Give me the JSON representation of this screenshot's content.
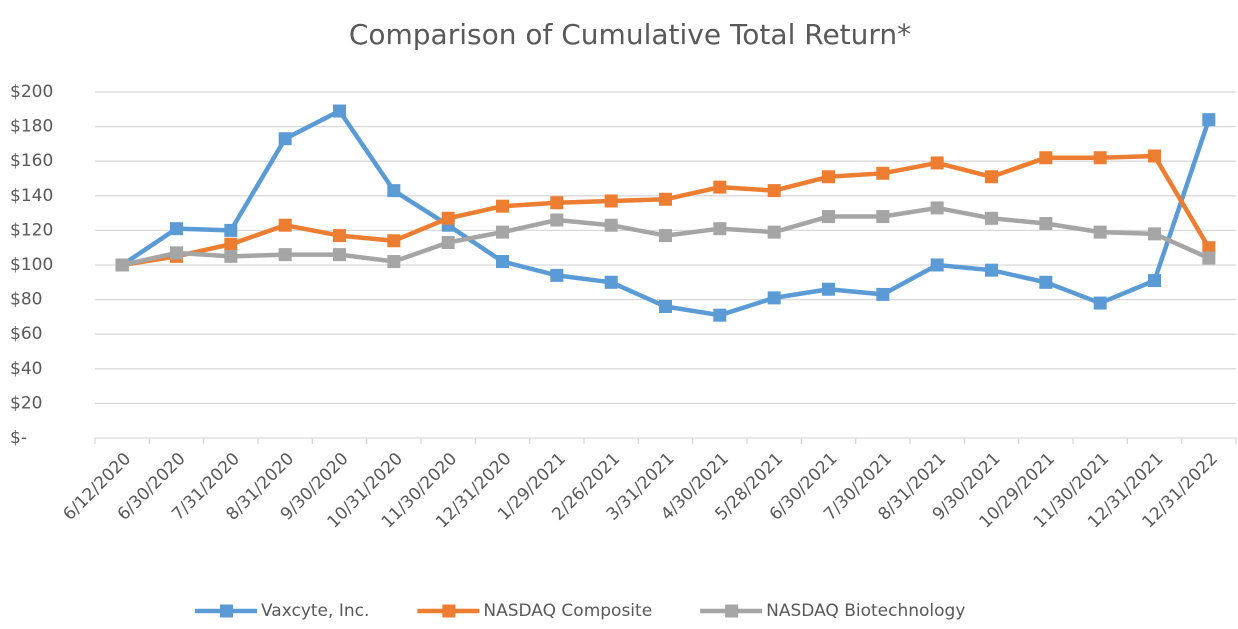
{
  "chart_data": {
    "type": "line",
    "title": "Comparison of Cumulative Total Return*",
    "categories": [
      "6/12/2020",
      "6/30/2020",
      "7/31/2020",
      "8/31/2020",
      "9/30/2020",
      "10/31/2020",
      "11/30/2020",
      "12/31/2020",
      "1/29/2021",
      "2/26/2021",
      "3/31/2021",
      "4/30/2021",
      "5/28/2021",
      "6/30/2021",
      "7/30/2021",
      "8/31/2021",
      "9/30/2021",
      "10/29/2021",
      "11/30/2021",
      "12/31/2021",
      "12/31/2022"
    ],
    "series": [
      {
        "name": "Vaxcyte, Inc.",
        "color": "#5b9bd5",
        "values": [
          100,
          121,
          120,
          173,
          189,
          143,
          123,
          102,
          94,
          90,
          76,
          71,
          81,
          86,
          83,
          100,
          97,
          90,
          78,
          91,
          184
        ]
      },
      {
        "name": "NASDAQ Composite",
        "color": "#ed7d31",
        "values": [
          100,
          105,
          112,
          123,
          117,
          114,
          127,
          134,
          136,
          137,
          138,
          145,
          143,
          151,
          153,
          159,
          151,
          162,
          162,
          163,
          110
        ]
      },
      {
        "name": "NASDAQ Biotechnology",
        "color": "#a5a5a5",
        "values": [
          100,
          107,
          105,
          106,
          106,
          102,
          113,
          119,
          126,
          123,
          117,
          121,
          119,
          128,
          128,
          133,
          127,
          124,
          119,
          118,
          104
        ]
      }
    ],
    "ylim": [
      0,
      200
    ],
    "yticks": [
      {
        "value": 0,
        "label": "$-"
      },
      {
        "value": 20,
        "label": "$20"
      },
      {
        "value": 40,
        "label": "$40"
      },
      {
        "value": 60,
        "label": "$60"
      },
      {
        "value": 80,
        "label": "$80"
      },
      {
        "value": 100,
        "label": "$100"
      },
      {
        "value": 120,
        "label": "$120"
      },
      {
        "value": 140,
        "label": "$140"
      },
      {
        "value": 160,
        "label": "$160"
      },
      {
        "value": 180,
        "label": "$180"
      },
      {
        "value": 200,
        "label": "$200"
      }
    ],
    "grid": true,
    "legend": "bottom"
  }
}
